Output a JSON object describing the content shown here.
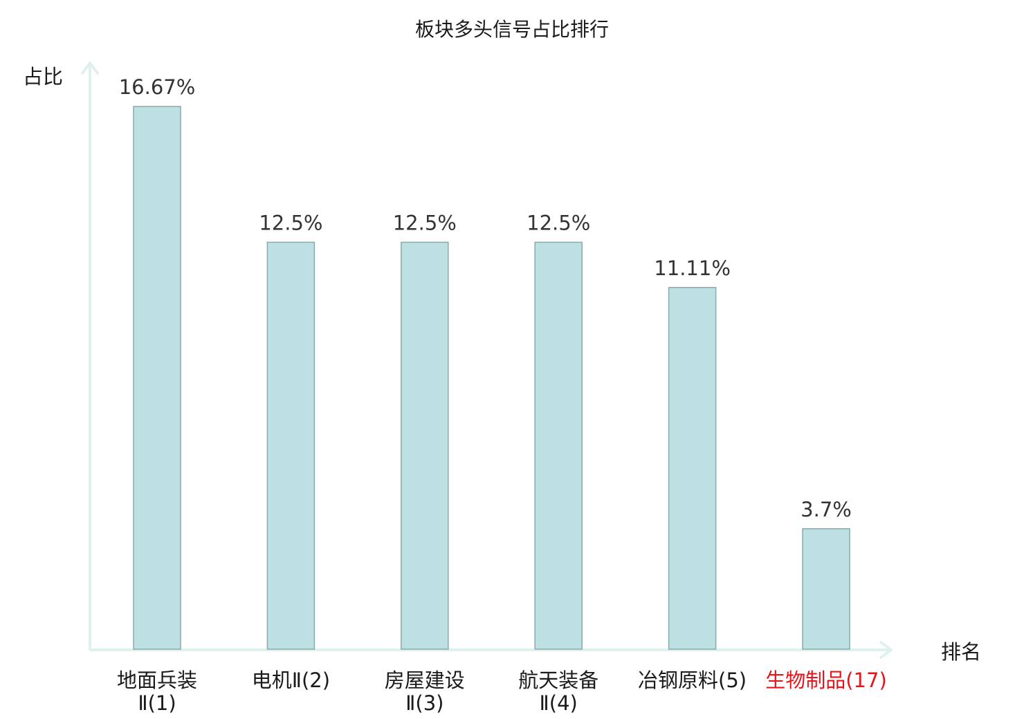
{
  "chart_data": {
    "type": "bar",
    "title": "板块多头信号占比排行",
    "xlabel": "排名",
    "ylabel": "占比",
    "ylim": [
      0,
      16.67
    ],
    "categories": [
      [
        "地面兵装",
        "Ⅱ(1)"
      ],
      [
        "电机Ⅱ(2)"
      ],
      [
        "房屋建设",
        "Ⅱ(3)"
      ],
      [
        "航天装备",
        "Ⅱ(4)"
      ],
      [
        "冶钢原料(5)"
      ],
      [
        "生物制品(17)"
      ]
    ],
    "values": [
      16.67,
      12.5,
      12.5,
      12.5,
      11.11,
      3.7
    ],
    "value_labels": [
      "16.67%",
      "12.5%",
      "12.5%",
      "12.5%",
      "11.11%",
      "3.7%"
    ],
    "highlight_index": 5,
    "grid": false
  },
  "colors": {
    "bar_fill": "#bde1e3",
    "bar_stroke": "#8aa9aa",
    "axis": "#dff1ef",
    "text": "#1a1a1a",
    "value_text": "#333333",
    "highlight": "#e8141a"
  }
}
